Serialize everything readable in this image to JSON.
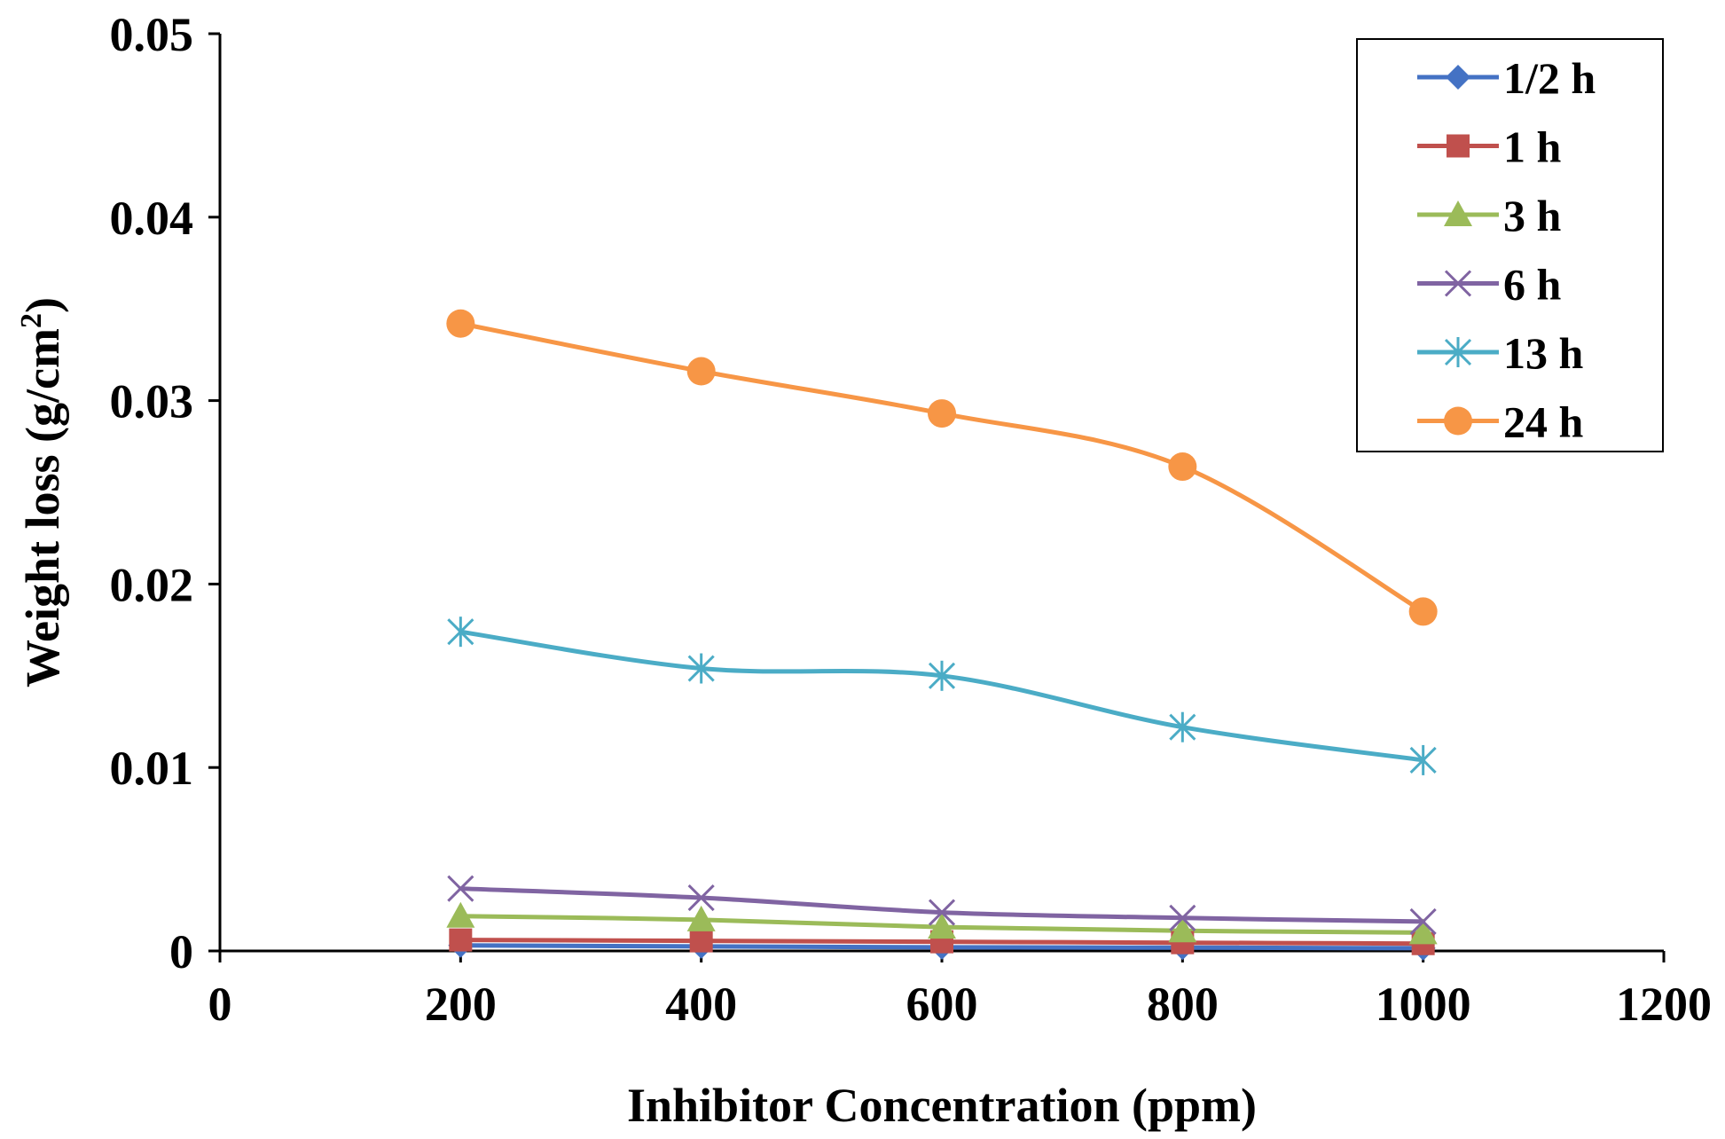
{
  "chart_data": {
    "type": "line",
    "title": "",
    "xlabel": "Inhibitor Concentration (ppm)",
    "ylabel_main": "Weight loss (g/cm",
    "ylabel_sup": "2",
    "ylabel_close": ")",
    "xlim": [
      0,
      1200
    ],
    "ylim": [
      0,
      0.05
    ],
    "x_ticks": [
      0,
      200,
      400,
      600,
      800,
      1000,
      1200
    ],
    "x_tick_labels": [
      "0",
      "200",
      "400",
      "600",
      "800",
      "1000",
      "1200"
    ],
    "y_ticks": [
      0,
      0.01,
      0.02,
      0.03,
      0.04,
      0.05
    ],
    "y_tick_labels": [
      "0",
      "0.01",
      "0.02",
      "0.03",
      "0.04",
      "0.05"
    ],
    "grid": false,
    "legend_position": "top-right",
    "x": [
      200,
      400,
      600,
      800,
      1000
    ],
    "series": [
      {
        "name": "1/2 h",
        "marker": "diamond",
        "color": "#4472C4",
        "values": [
          0.0003,
          0.00025,
          0.0002,
          0.00018,
          0.00015
        ]
      },
      {
        "name": "1 h",
        "marker": "square",
        "color": "#C0504D",
        "values": [
          0.0006,
          0.00055,
          0.0005,
          0.00045,
          0.0004
        ]
      },
      {
        "name": "3 h",
        "marker": "triangle",
        "color": "#9BBB59",
        "values": [
          0.0019,
          0.0017,
          0.0013,
          0.0011,
          0.001
        ]
      },
      {
        "name": "6 h",
        "marker": "x",
        "color": "#8064A2",
        "values": [
          0.0034,
          0.0029,
          0.0021,
          0.0018,
          0.0016
        ]
      },
      {
        "name": "13 h",
        "marker": "star",
        "color": "#4BACC6",
        "values": [
          0.0174,
          0.0154,
          0.015,
          0.0122,
          0.0104
        ]
      },
      {
        "name": "24 h",
        "marker": "circle",
        "color": "#F79646",
        "values": [
          0.0342,
          0.0316,
          0.0293,
          0.0264,
          0.0185
        ]
      }
    ]
  }
}
